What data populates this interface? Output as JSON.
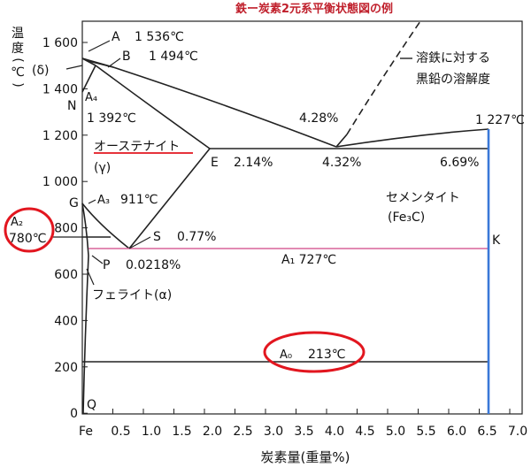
{
  "title": "鉄ー炭素2元系平衡状態図の例",
  "y_axis_label": [
    "温",
    "度",
    "(",
    "℃",
    ")"
  ],
  "x_axis_label": "炭素量(重量%)",
  "x_ticks": [
    "Fe",
    "0.5",
    "1.0",
    "1.5",
    "2.0",
    "2.5",
    "3.0",
    "3.5",
    "4.0",
    "4.5",
    "5.0",
    "5.5",
    "6.0",
    "6.5",
    "7.0"
  ],
  "y_ticks": [
    "1 600",
    "1 400",
    "1 200",
    "1 000",
    "800",
    "600",
    "400",
    "200",
    "0"
  ],
  "labels": {
    "A": "A",
    "A_temp": "1 536℃",
    "B": "B",
    "B_temp": "1 494℃",
    "delta": "(δ)",
    "A4": "A₄",
    "N": "N",
    "N_temp": "1 392℃",
    "pct_428": "4.28%",
    "solubility_1": "溶鉄に対する",
    "solubility_2": "黒鉛の溶解度",
    "temp_1227": "1 227℃",
    "austenite": "オーステナイト",
    "gamma": "(γ)",
    "E": "E",
    "pct_214": "2.14%",
    "pct_432": "4.32%",
    "pct_669": "6.69%",
    "G": "G",
    "A3": "A₃",
    "A3_temp": "911℃",
    "cementite": "セメンタイト",
    "cementite_formula": "(Fe₃C)",
    "A2": "A₂",
    "A2_temp": "780℃",
    "S": "S",
    "S_pct": "0.77%",
    "K": "K",
    "A1": "A₁ 727℃",
    "P": "P",
    "P_pct": "0.0218%",
    "ferrite": "フェライト(α)",
    "A0": "A₀",
    "A0_temp": "213℃",
    "Q": "Q"
  },
  "colors": {
    "title": "#c0202c",
    "highlight": "#e2161f",
    "cementite_line": "#3a78d8",
    "a1_line": "#d8649a"
  }
}
